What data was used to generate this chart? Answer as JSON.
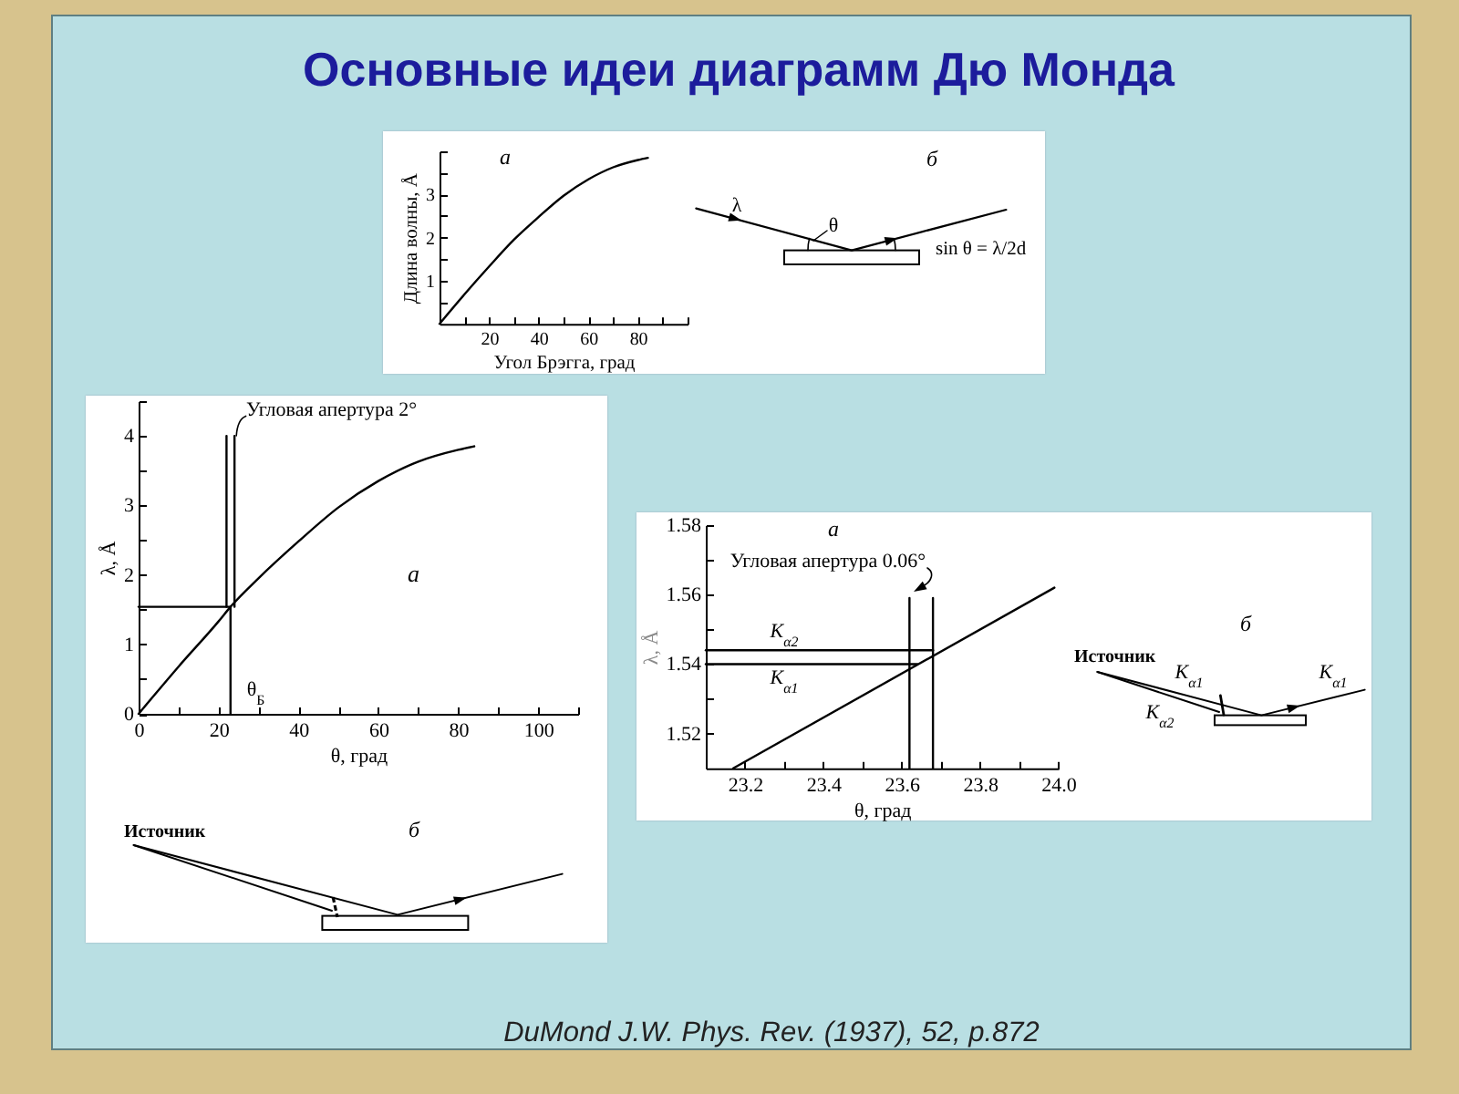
{
  "chart_data": [
    {
      "type": "other",
      "title": "Основные идеи диаграмм Дю Монда"
    },
    {
      "type": "line",
      "xlabel": "Угол Брэгга, град",
      "ylabel": "Длина волны, Å",
      "annotations": [
        "а"
      ],
      "x": [
        0,
        10,
        20,
        30,
        40,
        50,
        60,
        70,
        80,
        84
      ],
      "series": [
        {
          "color": "#000000",
          "values": [
            0,
            0.68,
            1.33,
            1.95,
            2.48,
            2.97,
            3.35,
            3.63,
            3.8,
            3.85
          ]
        }
      ],
      "xlim": [
        0,
        100
      ],
      "xticks": [
        {
          "value": 10,
          "label": null
        },
        20,
        {
          "value": 30,
          "label": null
        },
        40,
        {
          "value": 50,
          "label": null
        },
        60,
        {
          "value": 70,
          "label": null
        },
        80,
        {
          "value": 90,
          "label": null
        },
        {
          "value": 100,
          "label": null
        }
      ],
      "ylim": [
        0,
        4
      ],
      "yticks": [
        {
          "value": 0.5,
          "label": null
        },
        1,
        {
          "value": 1.5,
          "label": null
        },
        2,
        {
          "value": 2.5,
          "label": null
        },
        3,
        {
          "value": 3.5,
          "label": null
        },
        {
          "value": 4,
          "label": null
        }
      ]
    },
    {
      "type": "other",
      "annotations": [
        "б",
        "λ",
        "θ",
        "sin θ = λ/2d"
      ]
    },
    {
      "type": "line",
      "xlabel": "θ, град",
      "ylabel": "λ, Å",
      "annotations": [
        "Угловая апертура 2°",
        "а",
        "θ$_{Б}$"
      ],
      "series": [
        {
          "color": "#000000",
          "x": [
            0,
            10,
            20,
            23,
            30,
            40,
            50,
            60,
            70,
            80,
            84
          ],
          "values": [
            0,
            0.68,
            1.33,
            1.54,
            1.95,
            2.48,
            2.97,
            3.35,
            3.63,
            3.8,
            3.85
          ]
        },
        {
          "color": "#000000",
          "x": [
            0,
            23
          ],
          "values": [
            1.54,
            1.54
          ]
        },
        {
          "color": "#000000",
          "x": [
            23,
            23
          ],
          "values": [
            0,
            1.54
          ]
        },
        {
          "color": "#000000",
          "x": [
            22,
            22
          ],
          "values": [
            1.54,
            4
          ]
        },
        {
          "color": "#000000",
          "x": [
            24,
            24
          ],
          "values": [
            1.54,
            4
          ]
        }
      ],
      "xlim": [
        0,
        110
      ],
      "xticks": [
        0,
        {
          "value": 10,
          "label": null
        },
        20,
        {
          "value": 30,
          "label": null
        },
        40,
        {
          "value": 50,
          "label": null
        },
        60,
        {
          "value": 70,
          "label": null
        },
        80,
        {
          "value": 90,
          "label": null
        },
        100,
        {
          "value": 110,
          "label": null
        }
      ],
      "ylim": [
        0,
        4.5
      ],
      "yticks": [
        0,
        {
          "value": 0.5,
          "label": null
        },
        1,
        {
          "value": 1.5,
          "label": null
        },
        2,
        {
          "value": 2.5,
          "label": null
        },
        3,
        {
          "value": 3.5,
          "label": null
        },
        4,
        {
          "value": 4.5,
          "label": null
        }
      ]
    },
    {
      "type": "other",
      "annotations": [
        "Источник",
        "б"
      ]
    },
    {
      "type": "line",
      "xlabel": "θ, град",
      "ylabel": "λ, Å",
      "annotations": [
        "а",
        "Угловая апертура 0.06°",
        {
          "text": "K$_{α2}$",
          "x": 23.3,
          "y": 1.544
        },
        {
          "text": "K$_{α1}$",
          "x": 23.3,
          "y": 1.54
        }
      ],
      "series": [
        {
          "color": "#000000",
          "x": [
            23.17,
            23.99
          ],
          "values": [
            1.51,
            1.562
          ]
        },
        {
          "color": "#000000",
          "x": [
            23.1,
            23.68
          ],
          "values": [
            1.544,
            1.544
          ]
        },
        {
          "color": "#000000",
          "x": [
            23.1,
            23.64
          ],
          "values": [
            1.54,
            1.54
          ]
        },
        {
          "color": "#000000",
          "x": [
            23.62,
            23.62
          ],
          "values": [
            1.51,
            1.559
          ]
        },
        {
          "color": "#000000",
          "x": [
            23.68,
            23.68
          ],
          "values": [
            1.51,
            1.559
          ]
        }
      ],
      "xlim": [
        23.1,
        24
      ],
      "xticks": [
        23.2,
        {
          "value": 23.3,
          "label": null
        },
        23.4,
        {
          "value": 23.5,
          "label": null
        },
        23.6,
        {
          "value": 23.7,
          "label": null
        },
        23.8,
        {
          "value": 23.9,
          "label": null
        },
        {
          "value": 24,
          "label": "24.0"
        }
      ],
      "ylim": [
        1.51,
        1.58
      ],
      "yticks": [
        1.52,
        {
          "value": 1.53,
          "label": null
        },
        1.54,
        {
          "value": 1.55,
          "label": null
        },
        1.56,
        {
          "value": 1.57,
          "label": null
        },
        1.58
      ]
    },
    {
      "type": "other",
      "annotations": [
        "б",
        "Источник",
        "K$_{α1}$",
        "K$_{α2}$",
        "K$_{α1}$"
      ]
    },
    {
      "type": "other",
      "annotations": [
        "DuMond J.W. Phys. Rev. (1937), 52, p.872"
      ]
    }
  ]
}
